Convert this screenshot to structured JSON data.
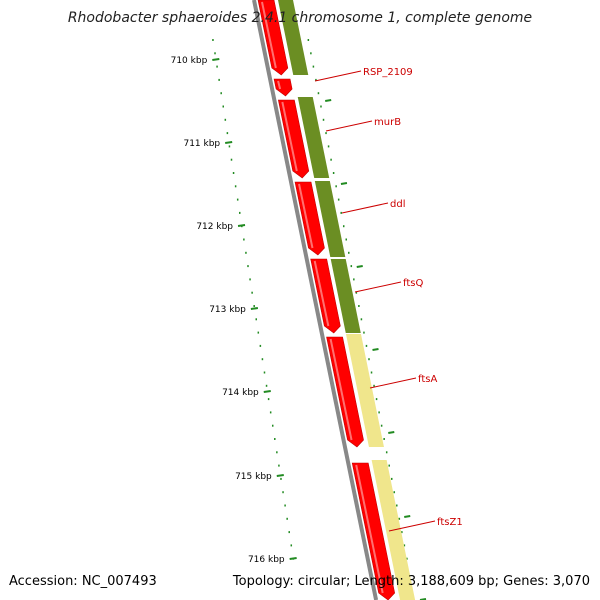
{
  "title": "Rhodobacter sphaeroides 2.4.1 chromosome 1, complete genome",
  "accession": "Accession: NC_007493",
  "summary": "Topology: circular; Length: 3,188,609 bp; Genes: 3,070",
  "colors": {
    "backbone": "#888888",
    "forward_gene": "#ff0000",
    "cog_dark_green": "#6b8e23",
    "cog_pale_yellow": "#f0e68c",
    "tick": "#228b22",
    "label": "#cc0000",
    "kbp_label": "#000000"
  },
  "ruler": {
    "labels": [
      "710 kbp",
      "711 kbp",
      "712 kbp",
      "713 kbp",
      "714 kbp",
      "715 kbp",
      "716 kbp"
    ]
  },
  "genes": [
    {
      "name": "RSP_2109",
      "cog": "dark_green"
    },
    {
      "name": "murB",
      "cog": "dark_green"
    },
    {
      "name": "ddl",
      "cog": "dark_green"
    },
    {
      "name": "ftsQ",
      "cog": "dark_green"
    },
    {
      "name": "ftsA",
      "cog": "pale_yellow"
    },
    {
      "name": "ftsZ1",
      "cog": "pale_yellow"
    }
  ]
}
